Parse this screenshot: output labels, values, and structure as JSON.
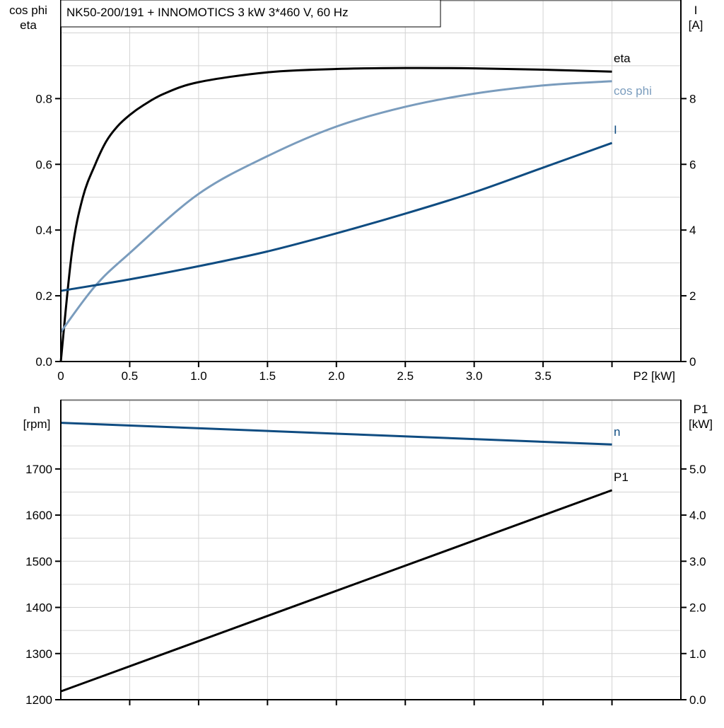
{
  "title": "NK50-200/191 + INNOMOTICS   3 kW   3*460 V, 60 Hz",
  "colors": {
    "eta": "#000000",
    "cos_phi": "#7a9cbd",
    "I": "#0f4c81",
    "n": "#0f4c81",
    "P1": "#000000",
    "grid": "#d3d3d3"
  },
  "chart_data": [
    {
      "type": "line",
      "xlabel": "P2 [kW]",
      "ylabel_left": [
        "cos phi",
        "eta"
      ],
      "ylabel_right": [
        "I",
        "[A]"
      ],
      "xlim": [
        0,
        4.5
      ],
      "ylim_left": [
        0,
        1.1
      ],
      "ylim_right": [
        0,
        11
      ],
      "x_ticks": [
        "0",
        "0.5",
        "1.0",
        "1.5",
        "2.0",
        "2.5",
        "3.0",
        "3.5"
      ],
      "y_left_ticks": [
        "0.0",
        "0.2",
        "0.4",
        "0.6",
        "0.8"
      ],
      "y_right_ticks": [
        "0",
        "2",
        "4",
        "6",
        "8"
      ],
      "grid": true,
      "series": [
        {
          "name": "eta",
          "axis": "left",
          "x": [
            0,
            0.08,
            0.16,
            0.25,
            0.33,
            0.41,
            0.5,
            0.6,
            0.75,
            1.0,
            1.5,
            2.0,
            2.5,
            3.0,
            3.5,
            4.0
          ],
          "y": [
            0,
            0.33,
            0.5,
            0.6,
            0.67,
            0.715,
            0.75,
            0.78,
            0.815,
            0.85,
            0.88,
            0.89,
            0.893,
            0.892,
            0.888,
            0.882
          ]
        },
        {
          "name": "cos phi",
          "axis": "left",
          "x": [
            0,
            0.25,
            0.5,
            1.0,
            1.5,
            2.0,
            2.5,
            3.0,
            3.5,
            4.0
          ],
          "y": [
            0.09,
            0.23,
            0.33,
            0.51,
            0.625,
            0.715,
            0.775,
            0.815,
            0.84,
            0.853
          ]
        },
        {
          "name": "I",
          "axis": "right",
          "x": [
            0,
            0.5,
            1.0,
            1.5,
            2.0,
            2.5,
            3.0,
            3.5,
            4.0
          ],
          "y": [
            2.15,
            2.5,
            2.9,
            3.35,
            3.9,
            4.5,
            5.15,
            5.9,
            6.65
          ]
        }
      ]
    },
    {
      "type": "line",
      "ylabel_left": [
        "n",
        "[rpm]"
      ],
      "ylabel_right": [
        "P1",
        "[kW]"
      ],
      "xlim": [
        0,
        4.5
      ],
      "ylim_left": [
        1200,
        1850
      ],
      "ylim_right": [
        0,
        6.5
      ],
      "y_left_ticks": [
        "1200",
        "1300",
        "1400",
        "1500",
        "1600",
        "1700"
      ],
      "y_right_ticks": [
        "0.0",
        "1.0",
        "2.0",
        "3.0",
        "4.0",
        "5.0"
      ],
      "grid": true,
      "series": [
        {
          "name": "n",
          "axis": "left",
          "x": [
            0,
            4.0
          ],
          "y": [
            1800,
            1753
          ]
        },
        {
          "name": "P1",
          "axis": "right",
          "x": [
            0,
            4.0
          ],
          "y": [
            0.18,
            4.54
          ]
        }
      ]
    }
  ]
}
